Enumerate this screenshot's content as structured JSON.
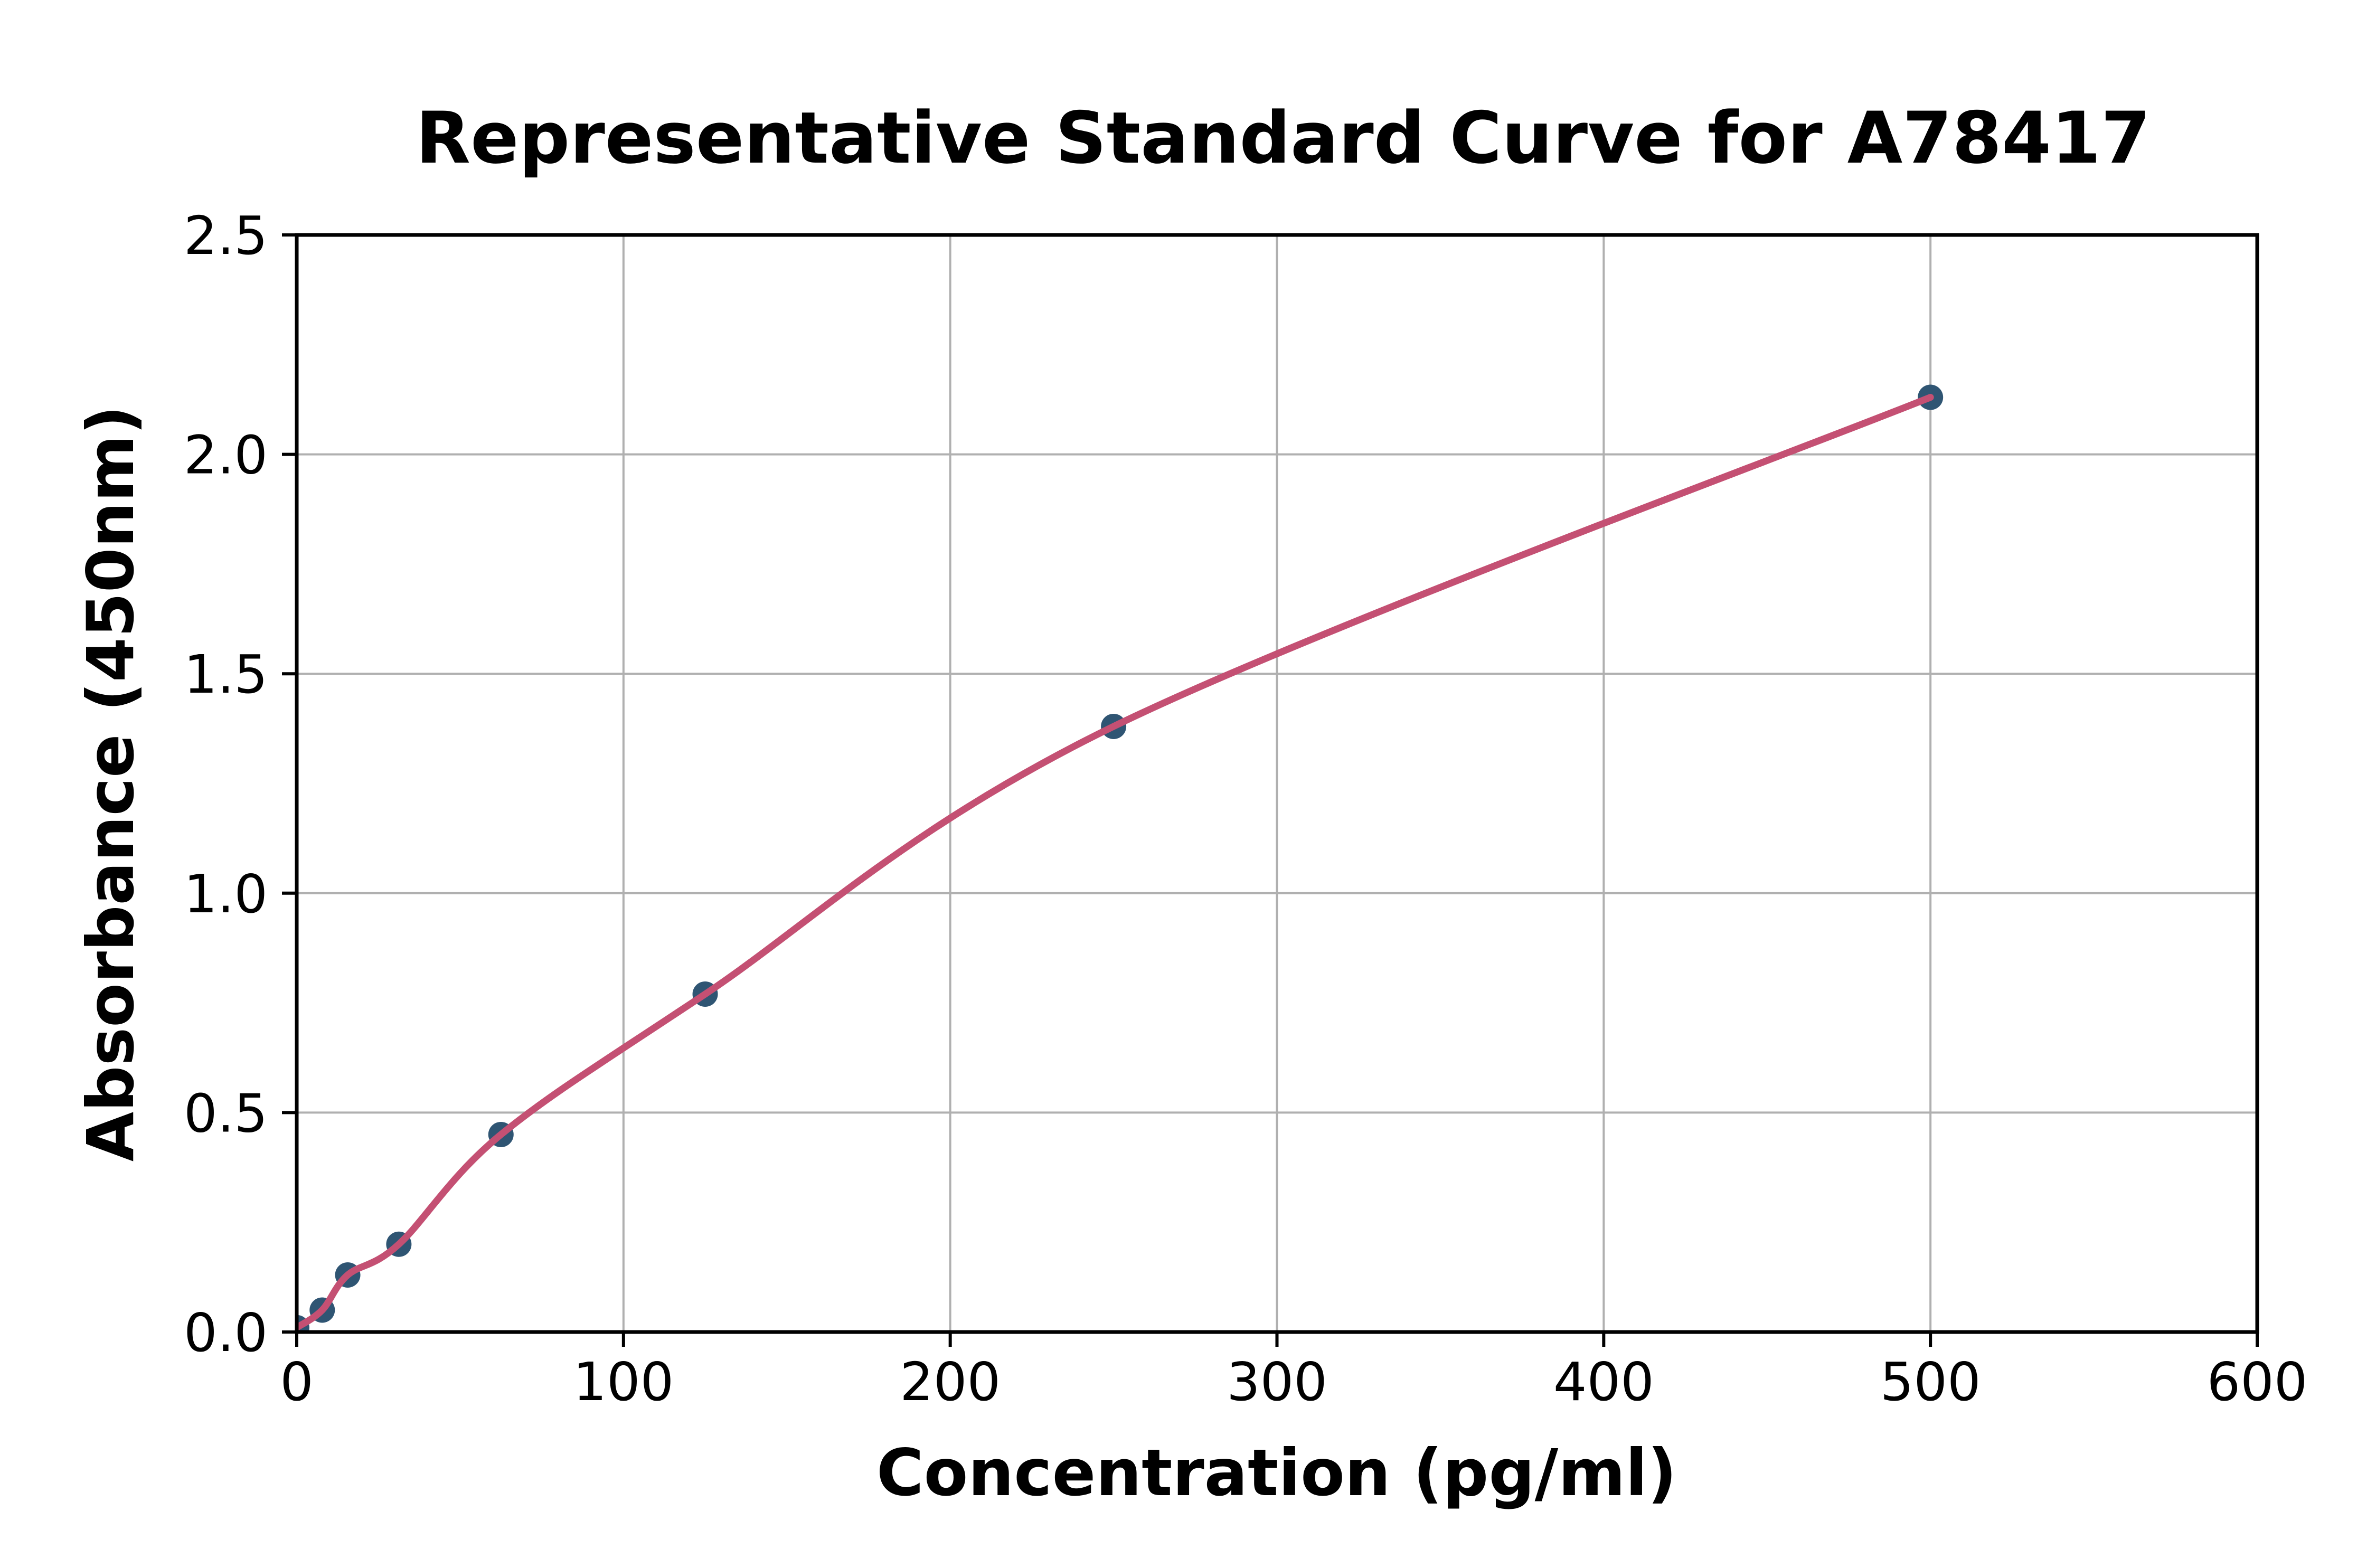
{
  "chart": {
    "title": "Representative Standard Curve for A78417",
    "xlabel": "Concentration (pg/ml)",
    "ylabel": "Absorbance (450nm)"
  },
  "chart_data": {
    "type": "scatter",
    "title": "Representative Standard Curve for A78417",
    "xlabel": "Concentration (pg/ml)",
    "ylabel": "Absorbance (450nm)",
    "xlim": [
      0,
      600
    ],
    "ylim": [
      0,
      2.5
    ],
    "xticks": [
      0,
      100,
      200,
      300,
      400,
      500,
      600
    ],
    "xtick_labels": [
      "0",
      "100",
      "200",
      "300",
      "400",
      "500",
      "600"
    ],
    "yticks": [
      0.0,
      0.5,
      1.0,
      1.5,
      2.0,
      2.5
    ],
    "ytick_labels": [
      "0.0",
      "0.5",
      "1.0",
      "1.5",
      "2.0",
      "2.5"
    ],
    "grid": true,
    "legend": false,
    "series": [
      {
        "name": "standard-points",
        "type": "scatter",
        "x": [
          0,
          7.8,
          15.6,
          31.25,
          62.5,
          125,
          250,
          500
        ],
        "y": [
          0.01,
          0.05,
          0.13,
          0.2,
          0.45,
          0.77,
          1.38,
          2.13
        ]
      },
      {
        "name": "fitted-curve",
        "type": "line",
        "x": [
          0,
          7.8,
          15.6,
          31.25,
          62.5,
          125,
          250,
          500
        ],
        "y": [
          0.01,
          0.05,
          0.13,
          0.2,
          0.45,
          0.77,
          1.38,
          2.13
        ]
      }
    ],
    "colors": {
      "marker": "#2F5573",
      "line": "#C45073",
      "grid": "#B0B0B0",
      "axis": "#000000",
      "background": "#FFFFFF"
    }
  }
}
